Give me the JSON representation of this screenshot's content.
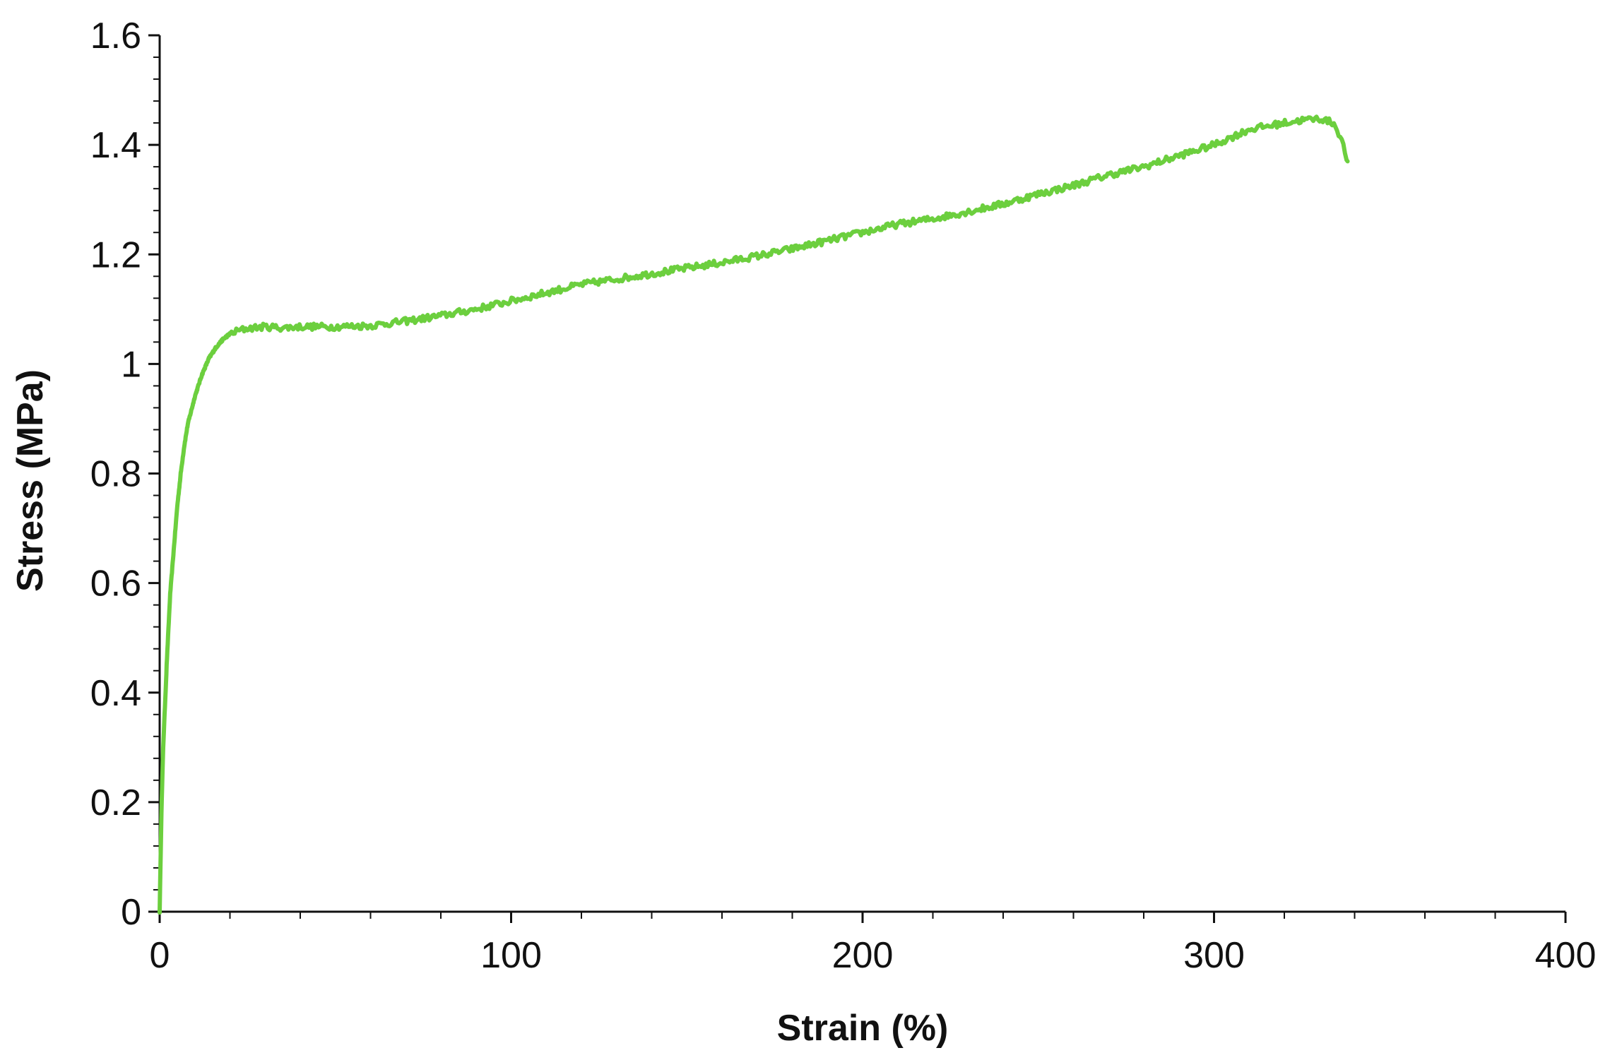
{
  "chart_data": {
    "type": "line",
    "title": "",
    "xlabel": "Strain (%)",
    "ylabel": "Stress (MPa)",
    "xlim": [
      0,
      400
    ],
    "ylim": [
      0,
      1.6
    ],
    "x_ticks": [
      "0",
      "100",
      "200",
      "300",
      "400"
    ],
    "y_ticks": [
      "0",
      "0.2",
      "0.4",
      "0.6",
      "0.8",
      "1",
      "1.2",
      "1.4",
      "1.6"
    ],
    "grid": false,
    "legend": "none",
    "series": [
      {
        "color": "#6ccf3e",
        "x": [
          0,
          0.5,
          1,
          2,
          3,
          4,
          5,
          6,
          7,
          8,
          10,
          12,
          14,
          16,
          18,
          20,
          22,
          25,
          30,
          35,
          40,
          50,
          60,
          70,
          80,
          90,
          100,
          110,
          120,
          130,
          140,
          150,
          160,
          170,
          180,
          190,
          200,
          210,
          220,
          230,
          240,
          250,
          260,
          270,
          280,
          290,
          300,
          310,
          320,
          325,
          330,
          334,
          336,
          338
        ],
        "y": [
          0,
          0.18,
          0.3,
          0.45,
          0.58,
          0.66,
          0.74,
          0.8,
          0.85,
          0.89,
          0.94,
          0.98,
          1.01,
          1.03,
          1.045,
          1.055,
          1.06,
          1.065,
          1.068,
          1.066,
          1.068,
          1.068,
          1.07,
          1.078,
          1.088,
          1.1,
          1.115,
          1.13,
          1.145,
          1.155,
          1.165,
          1.175,
          1.185,
          1.197,
          1.21,
          1.225,
          1.24,
          1.255,
          1.265,
          1.278,
          1.292,
          1.31,
          1.326,
          1.345,
          1.36,
          1.38,
          1.4,
          1.428,
          1.44,
          1.445,
          1.448,
          1.44,
          1.415,
          1.37
        ]
      }
    ]
  }
}
